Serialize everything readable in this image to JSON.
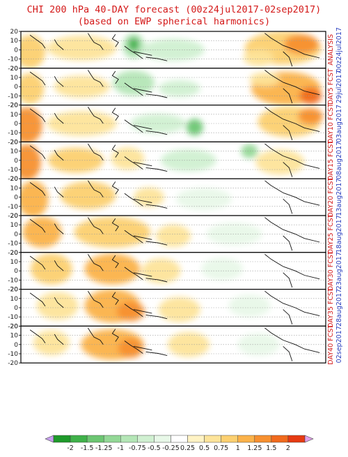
{
  "title": "CHI 200 hPa 40-DAY forecast (00z24jul2017-02sep2017)",
  "subtitle": "(based on EWP spherical harmonics)",
  "lat_ticks": [
    "20",
    "10",
    "0",
    "-10",
    "-20"
  ],
  "panels": [
    {
      "line1": "ANALYSIS",
      "line2": "00z24jul2017"
    },
    {
      "line1": "DAY5 FCST",
      "line2": "29jul2017"
    },
    {
      "line1": "DAY10 FCST",
      "line2": "03aug2017"
    },
    {
      "line1": "DAY15 FCST",
      "line2": "08aug2017"
    },
    {
      "line1": "DAY20 FCST",
      "line2": "13aug2017"
    },
    {
      "line1": "DAY25 FCST",
      "line2": "18aug2017"
    },
    {
      "line1": "DAY30 FCST",
      "line2": "23aug2017"
    },
    {
      "line1": "DAY35 FCST",
      "line2": "28aug2017"
    },
    {
      "line1": "DAY40 FCST",
      "line2": "02sep2017"
    }
  ],
  "colorbar": {
    "ticks": [
      "-2",
      "-1.5",
      "-1.25",
      "-1",
      "-0.75",
      "-0.5",
      "-0.25",
      "0.25",
      "0.5",
      "0.75",
      "1",
      "1.25",
      "1.5",
      "2"
    ],
    "colors": [
      "#1e9a2a",
      "#3fb14a",
      "#6cc672",
      "#93d896",
      "#b4e6b6",
      "#d0f0d1",
      "#e8f8e8",
      "#ffffff",
      "#fff3c4",
      "#fde49a",
      "#fcd070",
      "#fbb24a",
      "#f79030",
      "#f16a1d",
      "#e63a12"
    ],
    "end_left": "#c8a0f0",
    "end_right": "#e0a0e8"
  },
  "colors": {
    "title": "#d41a1a",
    "label_red": "#d41a1a",
    "label_blue": "#2a3fbf"
  }
}
